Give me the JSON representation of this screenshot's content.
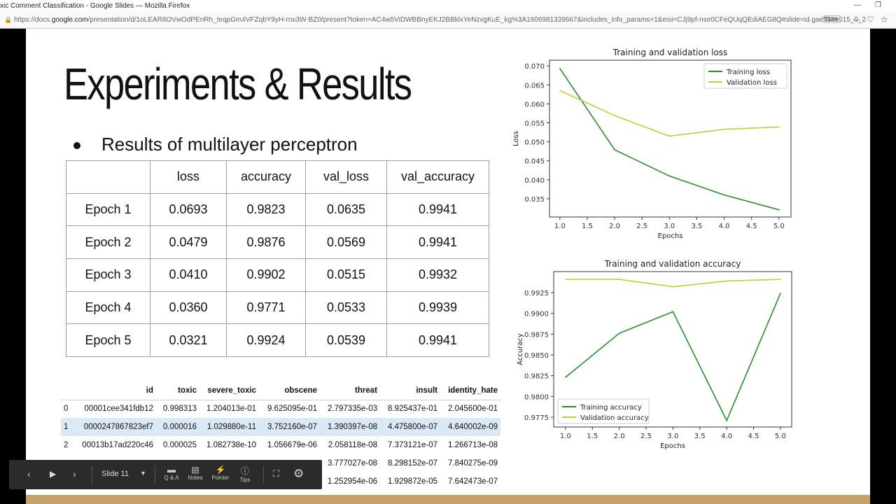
{
  "browser": {
    "window_title": "xic Comment Classification - Google Slides — Mozilla Firefox",
    "url_prefix": "https://docs.",
    "url_domain": "google.com",
    "url_rest": "/presentation/d/1oLEAR8OVwOdPEnRh_teqpGm4VFZqbY9yH-rnx3W-BZ0/present?token=AC4w5ViDWBBnyEKJ2BBklxYeNzvgKuE_kg%3A1606981339667&includes_info_params=1&eisi=CJj9pf-nse0CFeQUqQEdiAEG8Q#slide=id.gaeff5ae915_0_2",
    "zoom": "110%"
  },
  "slide": {
    "title": "Experiments & Results",
    "bullet": "Results of multilayer perceptron",
    "results_table": {
      "headers": [
        "",
        "loss",
        "accuracy",
        "val_loss",
        "val_accuracy"
      ],
      "rows": [
        [
          "Epoch 1",
          "0.0693",
          "0.9823",
          "0.0635",
          "0.9941"
        ],
        [
          "Epoch 2",
          "0.0479",
          "0.9876",
          "0.0569",
          "0.9941"
        ],
        [
          "Epoch 3",
          "0.0410",
          "0.9902",
          "0.0515",
          "0.9932"
        ],
        [
          "Epoch 4",
          "0.0360",
          "0.9771",
          "0.0533",
          "0.9939"
        ],
        [
          "Epoch 5",
          "0.0321",
          "0.9924",
          "0.0539",
          "0.9941"
        ]
      ]
    },
    "dataframe": {
      "headers": [
        "",
        "id",
        "toxic",
        "severe_toxic",
        "obscene",
        "threat",
        "insult",
        "identity_hate"
      ],
      "rows": [
        [
          "0",
          "00001cee341fdb12",
          "0.998313",
          "1.204013e-01",
          "9.625095e-01",
          "2.797335e-03",
          "8.925437e-01",
          "2.045600e-01"
        ],
        [
          "1",
          "0000247867823ef7",
          "0.000016",
          "1.029880e-11",
          "3.752160e-07",
          "1.390397e-08",
          "4.475800e-07",
          "4.640002e-09"
        ],
        [
          "2",
          "00013b17ad220c46",
          "0.000025",
          "1.082738e-10",
          "1.056679e-06",
          "2.058118e-08",
          "7.373121e-07",
          "1.266713e-08"
        ],
        [
          "",
          "",
          "",
          "",
          "",
          "3.777027e-08",
          "8.298152e-07",
          "7.840275e-09"
        ],
        [
          "",
          "",
          "",
          "",
          "",
          "1.252954e-06",
          "1.929872e-05",
          "7.642473e-07"
        ]
      ]
    }
  },
  "toolbar": {
    "slide_label": "Slide 11",
    "qa": "Q & A",
    "notes": "Notes",
    "pointer": "Pointer",
    "tips": "Tips"
  },
  "chart_data": [
    {
      "type": "line",
      "title": "Training and validation loss",
      "xlabel": "Epochs",
      "ylabel": "Loss",
      "x": [
        1,
        2,
        3,
        4,
        5
      ],
      "xlim": [
        0.81,
        5.22
      ],
      "ylim": [
        0.0302,
        0.0715
      ],
      "xticks": [
        "1.0",
        "1.5",
        "2.0",
        "2.5",
        "3.0",
        "3.5",
        "4.0",
        "4.5",
        "5.0"
      ],
      "yticks": [
        "0.035",
        "0.040",
        "0.045",
        "0.050",
        "0.055",
        "0.060",
        "0.065",
        "0.070"
      ],
      "legend": "top-right",
      "grid": false,
      "series": [
        {
          "name": "Training loss",
          "color": "#2e8b2e",
          "values": [
            0.0693,
            0.0479,
            0.041,
            0.036,
            0.0321
          ]
        },
        {
          "name": "Validation loss",
          "color": "#c8c83a",
          "values": [
            0.0635,
            0.0569,
            0.0515,
            0.0533,
            0.0539
          ]
        }
      ]
    },
    {
      "type": "line",
      "title": "Training and validation accuracy",
      "xlabel": "Epochs",
      "ylabel": "Accuracy",
      "x": [
        1,
        2,
        3,
        4,
        5
      ],
      "xlim": [
        0.78,
        5.21
      ],
      "ylim": [
        0.97632,
        0.99503
      ],
      "xticks": [
        "1.0",
        "1.5",
        "2.0",
        "2.5",
        "3.0",
        "3.5",
        "4.0",
        "4.5",
        "5.0"
      ],
      "yticks": [
        "0.9775",
        "0.9800",
        "0.9825",
        "0.9850",
        "0.9875",
        "0.9900",
        "0.9925"
      ],
      "legend": "bottom-left",
      "grid": false,
      "series": [
        {
          "name": "Training accuracy",
          "color": "#2e8b2e",
          "values": [
            0.9823,
            0.9876,
            0.9902,
            0.9771,
            0.9924
          ]
        },
        {
          "name": "Validation accuracy",
          "color": "#c8c83a",
          "values": [
            0.9941,
            0.9941,
            0.9932,
            0.9939,
            0.9941
          ]
        }
      ]
    }
  ]
}
